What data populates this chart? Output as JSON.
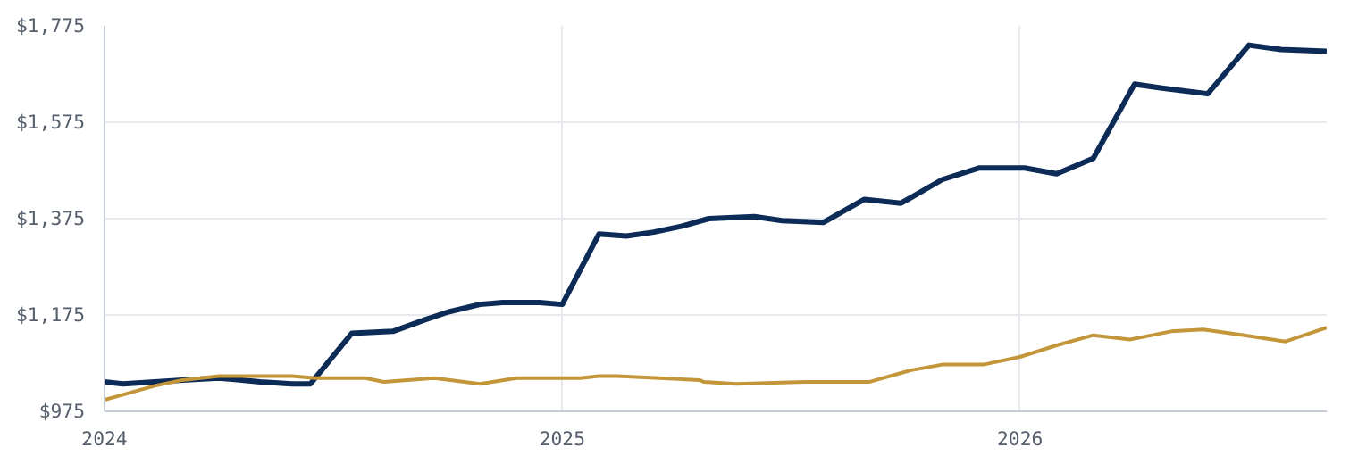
{
  "chart_data": {
    "type": "line",
    "xlim": [
      2024,
      2026.67
    ],
    "xticks": [
      2024,
      2025,
      2026
    ],
    "ylim": [
      975,
      1775
    ],
    "yticks": [
      {
        "value": 975,
        "label": "$975"
      },
      {
        "value": 1175,
        "label": "$1,175"
      },
      {
        "value": 1375,
        "label": "$1,375"
      },
      {
        "value": 1575,
        "label": "$1,575"
      },
      {
        "value": 1775,
        "label": "$1,775"
      }
    ],
    "grid": true,
    "marker": "none",
    "line_style": "solid",
    "series": [
      {
        "color": "#0c2b57",
        "x": [
          2024.0,
          2024.04,
          2024.11,
          2024.17,
          2024.25,
          2024.3,
          2024.34,
          2024.41,
          2024.45,
          2024.54,
          2024.63,
          2024.7,
          2024.75,
          2024.82,
          2024.87,
          2024.95,
          2025.0,
          2025.08,
          2025.14,
          2025.2,
          2025.26,
          2025.32,
          2025.42,
          2025.48,
          2025.57,
          2025.66,
          2025.74,
          2025.83,
          2025.91,
          2026.01,
          2026.08,
          2026.16,
          2026.25,
          2026.31,
          2026.41,
          2026.5,
          2026.57,
          2026.67
        ],
        "values": [
          1036,
          1032,
          1036,
          1040,
          1044,
          1040,
          1036,
          1032,
          1032,
          1137,
          1141,
          1165,
          1181,
          1197,
          1201,
          1201,
          1197,
          1343,
          1339,
          1347,
          1359,
          1375,
          1379,
          1371,
          1367,
          1415,
          1407,
          1456,
          1480,
          1480,
          1468,
          1500,
          1654,
          1646,
          1634,
          1735,
          1726,
          1722
        ]
      },
      {
        "color": "#c4963a",
        "x": [
          2024.0,
          2024.11,
          2024.17,
          2024.25,
          2024.41,
          2024.46,
          2024.57,
          2024.61,
          2024.72,
          2024.82,
          2024.9,
          2025.04,
          2025.08,
          2025.12,
          2025.3,
          2025.31,
          2025.38,
          2025.53,
          2025.67,
          2025.76,
          2025.83,
          2025.92,
          2026.0,
          2026.08,
          2026.16,
          2026.24,
          2026.33,
          2026.4,
          2026.49,
          2026.58,
          2026.67
        ],
        "values": [
          999,
          1028,
          1040,
          1048,
          1048,
          1044,
          1044,
          1036,
          1044,
          1032,
          1044,
          1044,
          1048,
          1048,
          1040,
          1036,
          1032,
          1036,
          1036,
          1060,
          1072,
          1072,
          1088,
          1112,
          1133,
          1124,
          1141,
          1145,
          1133,
          1120,
          1149
        ]
      }
    ]
  }
}
